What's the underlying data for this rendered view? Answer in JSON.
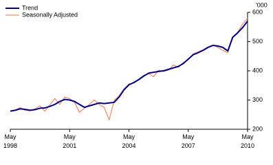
{
  "chart_data": {
    "type": "line",
    "y_unit": "'000",
    "x": [
      "1998-05",
      "1998-08",
      "1998-11",
      "1999-02",
      "1999-05",
      "1999-08",
      "1999-11",
      "2000-02",
      "2000-05",
      "2000-08",
      "2000-11",
      "2001-02",
      "2001-05",
      "2001-08",
      "2001-11",
      "2002-02",
      "2002-05",
      "2002-08",
      "2002-11",
      "2003-02",
      "2003-05",
      "2003-08",
      "2003-11",
      "2004-02",
      "2004-05",
      "2004-08",
      "2004-11",
      "2005-02",
      "2005-05",
      "2005-08",
      "2005-11",
      "2006-02",
      "2006-05",
      "2006-08",
      "2006-11",
      "2007-02",
      "2007-05",
      "2007-08",
      "2007-11",
      "2008-02",
      "2008-05",
      "2008-08",
      "2008-11",
      "2009-02",
      "2009-05",
      "2009-08",
      "2009-11",
      "2010-02",
      "2010-05"
    ],
    "series": [
      {
        "name": "Trend",
        "color": "#000080",
        "values": [
          262,
          265,
          270,
          268,
          265,
          267,
          272,
          273,
          278,
          285,
          295,
          302,
          300,
          295,
          285,
          275,
          280,
          285,
          290,
          288,
          290,
          292,
          310,
          335,
          352,
          360,
          370,
          382,
          392,
          395,
          398,
          400,
          405,
          410,
          415,
          425,
          440,
          455,
          462,
          470,
          480,
          487,
          485,
          480,
          468,
          515,
          530,
          548,
          570
        ]
      },
      {
        "name": "Seasonally Adjusted",
        "color": "#f2906f",
        "values": [
          262,
          266,
          274,
          265,
          263,
          270,
          280,
          262,
          283,
          305,
          285,
          310,
          305,
          292,
          258,
          272,
          285,
          300,
          285,
          275,
          232,
          298,
          315,
          338,
          355,
          358,
          372,
          385,
          390,
          380,
          402,
          398,
          402,
          420,
          412,
          428,
          438,
          458,
          465,
          472,
          482,
          488,
          480,
          470,
          462,
          515,
          532,
          560,
          580
        ]
      }
    ],
    "ylim": [
      200,
      600
    ],
    "yticks": [
      200,
      300,
      400,
      500,
      600
    ],
    "xlim": [
      "1998-05",
      "2010-05"
    ],
    "xticks": [
      {
        "value": "1998-05",
        "label": "May 1998"
      },
      {
        "value": "2001-05",
        "label": "May 2001"
      },
      {
        "value": "2004-05",
        "label": "May 2004"
      },
      {
        "value": "2007-05",
        "label": "May 2007"
      },
      {
        "value": "2010-05",
        "label": "May 2010"
      }
    ],
    "legend": "top-left"
  }
}
